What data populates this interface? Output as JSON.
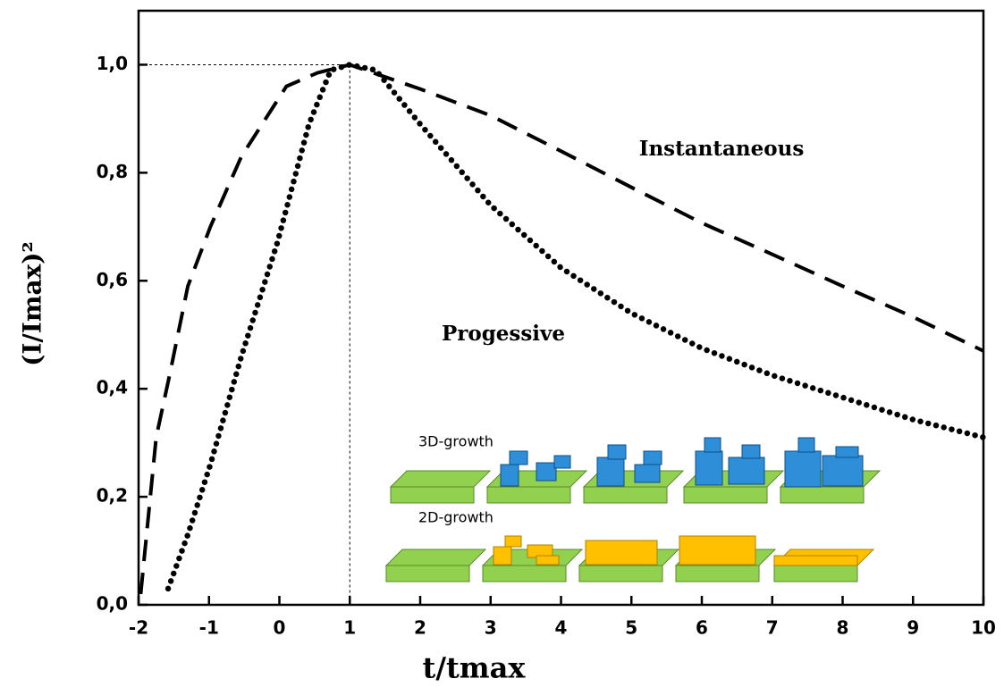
{
  "chart_data": {
    "type": "line",
    "x_label": "t/tmax",
    "y_label": "(I/Imax)²",
    "annotations": [
      "Instantaneous",
      "Progessive",
      "3D-growth",
      "2D-growth"
    ],
    "series": [
      {
        "name": "Instantaneous",
        "color": "#000000",
        "dash": "dashed",
        "x": [
          -1.97,
          -1.75,
          -1.56,
          -1.3,
          -0.98,
          -0.54,
          0.1,
          0.54,
          1,
          2,
          3,
          4,
          5,
          6,
          7,
          8,
          9,
          10
        ],
        "values": [
          0.02,
          0.31,
          0.425,
          0.59,
          0.7,
          0.83,
          0.96,
          0.985,
          1.0,
          0.955,
          0.906,
          0.84,
          0.773,
          0.707,
          0.649,
          0.59,
          0.533,
          0.47
        ]
      },
      {
        "name": "Progessive",
        "color": "#000000",
        "dash": "dotted",
        "x": [
          -1.58,
          -1.3,
          -0.98,
          -0.54,
          -0.03,
          0.42,
          0.73,
          1,
          1.37,
          2,
          3,
          4,
          5,
          6,
          7,
          8,
          9,
          10
        ],
        "values": [
          0.03,
          0.13,
          0.26,
          0.46,
          0.67,
          0.89,
          0.99,
          1.0,
          0.99,
          0.89,
          0.74,
          0.624,
          0.54,
          0.475,
          0.425,
          0.384,
          0.343,
          0.31
        ]
      }
    ],
    "xlim": [
      -2,
      10
    ],
    "xticks": [
      -2,
      -1,
      0,
      1,
      2,
      3,
      4,
      5,
      6,
      7,
      8,
      9,
      10
    ],
    "ylim": [
      0,
      1.1
    ],
    "yticks": [
      {
        "value": 0,
        "label": "0,0"
      },
      {
        "value": 0.2,
        "label": "0,2"
      },
      {
        "value": 0.4,
        "label": "0,4"
      },
      {
        "value": 0.6,
        "label": "0,6"
      },
      {
        "value": 0.8,
        "label": "0,8"
      },
      {
        "value": 1.0,
        "label": "1,0"
      }
    ],
    "grid": false
  }
}
